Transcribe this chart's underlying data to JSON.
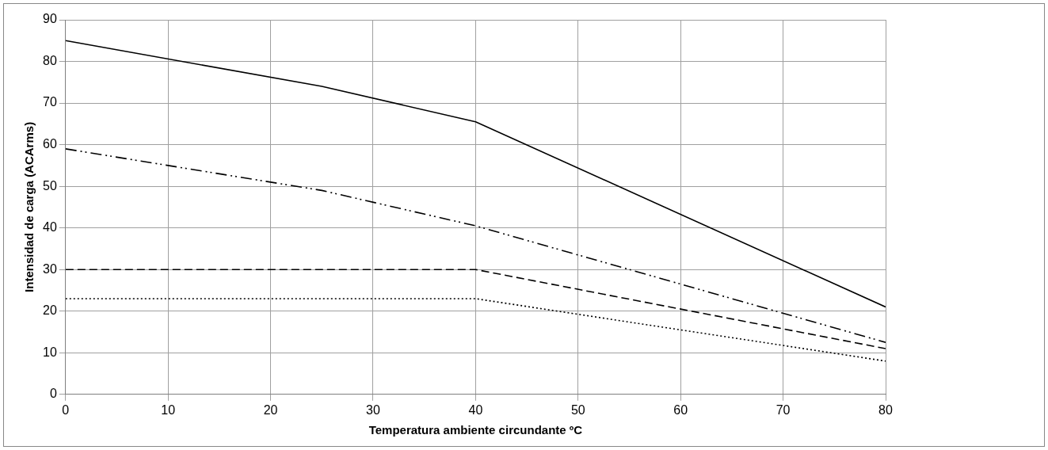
{
  "chart_data": {
    "type": "line",
    "xlabel": "Temperatura ambiente circundante ºC",
    "ylabel": "Intensidad de carga (ACArms)",
    "series": [
      {
        "color": "#000000",
        "line_style": "solid",
        "x": [
          0,
          25,
          40,
          80
        ],
        "values": [
          85,
          74,
          65.5,
          21
        ]
      },
      {
        "color": "#000000",
        "line_style": "dashdot",
        "x": [
          0,
          25,
          40,
          80
        ],
        "values": [
          59,
          49,
          40.5,
          12.5
        ]
      },
      {
        "color": "#000000",
        "line_style": "dashed",
        "x": [
          0,
          40,
          80
        ],
        "values": [
          30,
          30,
          11
        ]
      },
      {
        "color": "#000000",
        "line_style": "dotted",
        "x": [
          0,
          40,
          80
        ],
        "values": [
          23,
          23,
          8
        ]
      }
    ],
    "xlim": [
      0,
      80
    ],
    "xticks": [
      0,
      10,
      20,
      30,
      40,
      50,
      60,
      70,
      80
    ],
    "ylim": [
      0,
      90
    ],
    "yticks": [
      0,
      10,
      20,
      30,
      40,
      50,
      60,
      70,
      80,
      90
    ],
    "grid": true,
    "legend": false,
    "marker": "none"
  }
}
